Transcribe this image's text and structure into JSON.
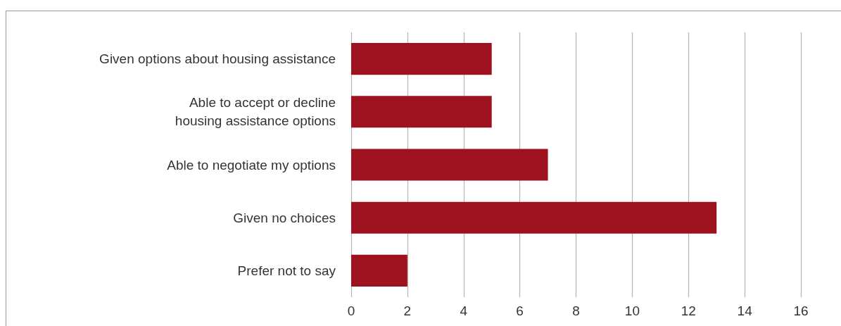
{
  "chart_data": {
    "type": "bar",
    "orientation": "horizontal",
    "categories": [
      "Given options about housing assistance",
      "Able to accept or decline\nhousing assistance options",
      "Able to negotiate my options",
      "Given no choices",
      "Prefer not to say"
    ],
    "values": [
      5,
      5,
      7,
      13,
      2
    ],
    "color": "#9e1220",
    "xlim": [
      0,
      16
    ],
    "xticks": [
      0,
      2,
      4,
      6,
      8,
      10,
      12,
      14,
      16
    ],
    "grid": "x"
  }
}
